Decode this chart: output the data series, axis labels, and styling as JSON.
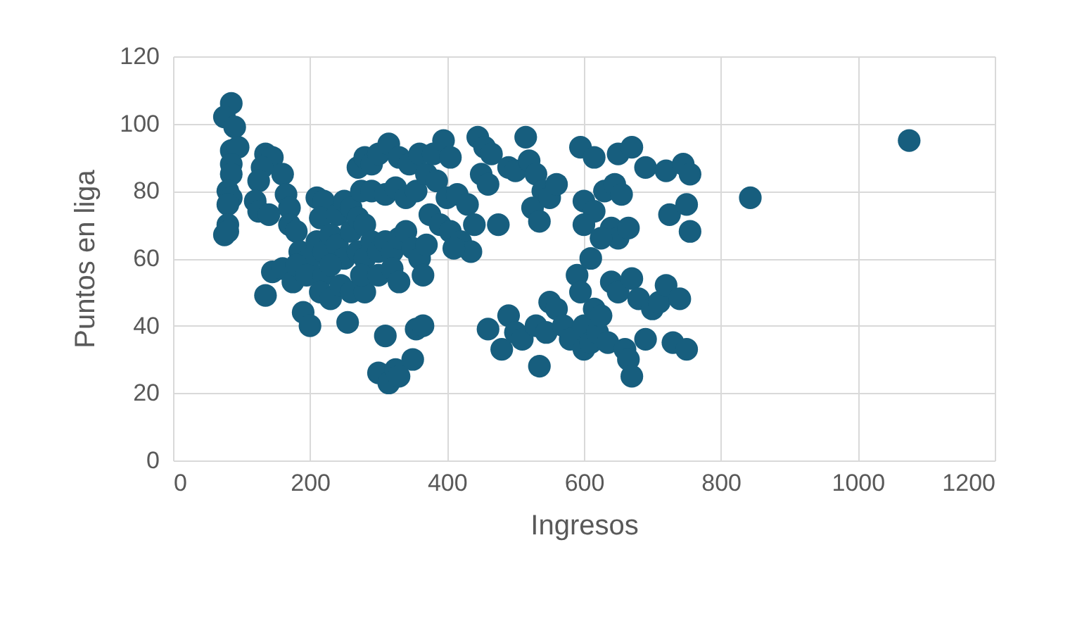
{
  "chart_data": {
    "type": "scatter",
    "xlabel": "Ingresos",
    "ylabel": "Puntos en liga",
    "xlim": [
      0,
      1200
    ],
    "xticks": [
      0,
      200,
      400,
      600,
      800,
      1000,
      1200
    ],
    "ylim": [
      0,
      120
    ],
    "yticks": [
      0,
      20,
      40,
      60,
      80,
      100,
      120
    ],
    "grid": true,
    "marker": "circle",
    "series": [
      {
        "color": "#175e7e",
        "x": [
          85,
          75,
          90,
          85,
          95,
          85,
          85,
          80,
          85,
          80,
          80,
          75,
          80,
          135,
          145,
          130,
          160,
          125,
          165,
          120,
          125,
          140,
          170,
          145,
          160,
          135,
          190,
          200,
          175,
          170,
          180,
          185,
          200,
          180,
          195,
          210,
          220,
          215,
          240,
          250,
          260,
          210,
          220,
          230,
          240,
          250,
          260,
          270,
          280,
          220,
          230,
          270,
          280,
          290,
          300,
          215,
          230,
          245,
          260,
          280,
          255,
          275,
          300,
          310,
          320,
          330,
          340,
          350,
          360,
          370,
          270,
          280,
          290,
          300,
          315,
          330,
          345,
          360,
          275,
          290,
          310,
          325,
          340,
          355,
          370,
          380,
          395,
          405,
          385,
          400,
          415,
          430,
          375,
          390,
          405,
          420,
          435,
          410,
          440,
          445,
          455,
          465,
          450,
          460,
          475,
          490,
          500,
          515,
          520,
          530,
          540,
          525,
          535,
          550,
          560,
          300,
          315,
          325,
          330,
          310,
          320,
          330,
          350,
          355,
          365,
          365,
          460,
          480,
          490,
          500,
          510,
          530,
          535,
          545,
          550,
          560,
          570,
          580,
          590,
          595,
          600,
          600,
          610,
          615,
          620,
          625,
          635,
          640,
          650,
          660,
          665,
          670,
          670,
          680,
          690,
          700,
          710,
          720,
          730,
          740,
          750,
          595,
          615,
          650,
          670,
          600,
          615,
          630,
          645,
          655,
          600,
          640,
          650,
          665,
          690,
          720,
          745,
          755,
          725,
          750,
          755,
          610,
          625,
          843,
          1075
        ],
        "values": [
          106,
          102,
          99,
          92,
          93,
          88,
          85,
          80,
          78,
          76,
          70,
          67,
          68,
          91,
          90,
          87,
          85,
          83,
          79,
          77,
          74,
          73,
          75,
          56,
          57,
          49,
          44,
          40,
          53,
          70,
          68,
          62,
          60,
          58,
          55,
          78,
          77,
          72,
          73,
          77,
          75,
          65,
          62,
          67,
          64,
          60,
          68,
          72,
          70,
          55,
          58,
          62,
          60,
          65,
          62,
          50,
          48,
          52,
          50,
          50,
          41,
          55,
          55,
          65,
          62,
          66,
          68,
          63,
          60,
          64,
          87,
          90,
          88,
          91,
          94,
          90,
          88,
          91,
          80,
          80,
          79,
          81,
          78,
          80,
          85,
          91,
          95,
          90,
          83,
          78,
          79,
          76,
          73,
          70,
          68,
          65,
          62,
          63,
          70,
          96,
          93,
          91,
          85,
          82,
          70,
          87,
          86,
          96,
          89,
          85,
          80,
          75,
          71,
          78,
          82,
          26,
          23,
          27,
          25,
          37,
          57,
          53,
          30,
          39,
          40,
          55,
          39,
          33,
          43,
          38,
          36,
          40,
          28,
          38,
          47,
          45,
          40,
          36,
          55,
          50,
          40,
          33,
          35,
          45,
          38,
          43,
          35,
          53,
          50,
          33,
          30,
          54,
          25,
          48,
          36,
          45,
          47,
          52,
          35,
          48,
          33,
          93,
          90,
          91,
          93,
          77,
          74,
          80,
          82,
          79,
          70,
          69,
          66,
          69,
          87,
          86,
          88,
          85,
          73,
          76,
          68,
          60,
          66,
          78,
          95
        ]
      }
    ]
  }
}
